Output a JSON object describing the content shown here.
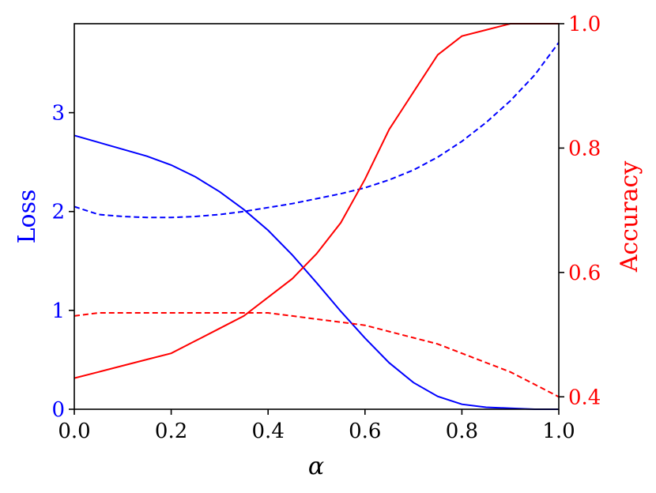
{
  "chart_data": {
    "type": "line",
    "title": "",
    "xlabel": "α",
    "ylabel_left": "Loss",
    "ylabel_right": "Accuracy",
    "xlim": [
      0.0,
      1.0
    ],
    "ylim_left": [
      0,
      3.9
    ],
    "ylim_right": [
      0.38,
      1.0
    ],
    "grid": false,
    "legend": "none",
    "x_ticks": [
      "0.0",
      "0.2",
      "0.4",
      "0.6",
      "0.8",
      "1.0"
    ],
    "y_left_ticks": [
      "0",
      "1",
      "2",
      "3"
    ],
    "y_right_ticks": [
      "0.4",
      "0.6",
      "0.8",
      "1.0"
    ],
    "colors": {
      "loss": "#0000ff",
      "accuracy": "#ff0000",
      "frame": "#000000"
    },
    "x": [
      0.0,
      0.05,
      0.1,
      0.15,
      0.2,
      0.25,
      0.3,
      0.35,
      0.4,
      0.45,
      0.5,
      0.55,
      0.6,
      0.65,
      0.7,
      0.75,
      0.8,
      0.85,
      0.9,
      0.95,
      1.0
    ],
    "series": [
      {
        "axis": "left",
        "style": "solid",
        "color": "#0000ff",
        "values": [
          2.77,
          2.7,
          2.63,
          2.56,
          2.47,
          2.35,
          2.2,
          2.02,
          1.81,
          1.56,
          1.28,
          0.99,
          0.72,
          0.47,
          0.27,
          0.13,
          0.05,
          0.02,
          0.01,
          0.0,
          0.0
        ]
      },
      {
        "axis": "left",
        "style": "dashed",
        "color": "#0000ff",
        "values": [
          2.05,
          1.97,
          1.95,
          1.94,
          1.94,
          1.95,
          1.97,
          2.0,
          2.04,
          2.08,
          2.13,
          2.18,
          2.24,
          2.32,
          2.42,
          2.55,
          2.71,
          2.9,
          3.12,
          3.38,
          3.71
        ]
      },
      {
        "axis": "right",
        "style": "solid",
        "color": "#ff0000",
        "values": [
          0.43,
          0.44,
          0.45,
          0.46,
          0.47,
          0.49,
          0.51,
          0.53,
          0.56,
          0.59,
          0.63,
          0.68,
          0.75,
          0.83,
          0.89,
          0.95,
          0.98,
          0.99,
          1.0,
          1.0,
          1.0
        ]
      },
      {
        "axis": "right",
        "style": "dashed",
        "color": "#ff0000",
        "values": [
          0.53,
          0.535,
          0.535,
          0.535,
          0.535,
          0.535,
          0.535,
          0.535,
          0.535,
          0.53,
          0.525,
          0.52,
          0.515,
          0.505,
          0.495,
          0.485,
          0.47,
          0.455,
          0.44,
          0.42,
          0.4
        ]
      }
    ]
  }
}
